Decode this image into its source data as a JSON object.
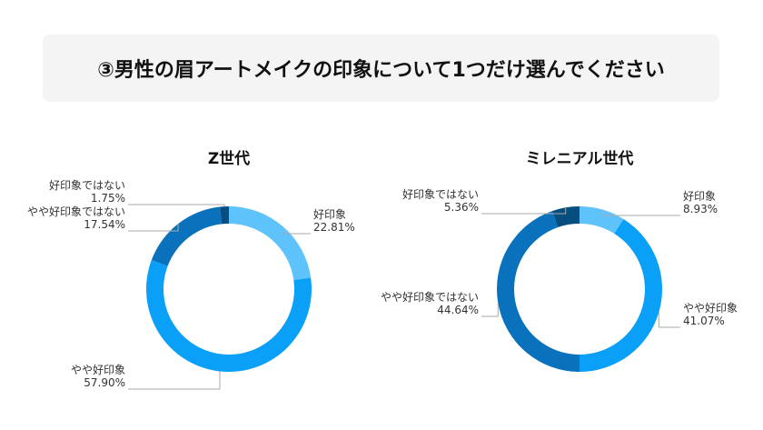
{
  "page_title": "③男性の眉アートメイクの印象について1つだけ選んでください",
  "chart_data": [
    {
      "type": "pie",
      "title": "Z世代",
      "categories": [
        "好印象",
        "やや好印象",
        "やや好印象ではない",
        "好印象ではない"
      ],
      "values": [
        22.81,
        57.9,
        17.54,
        1.75
      ],
      "value_labels": [
        "22.81%",
        "57.90%",
        "17.54%",
        "1.75%"
      ],
      "colors": [
        "#5ec3fb",
        "#0aa0f7",
        "#0a72bd",
        "#074e80"
      ],
      "donut": true
    },
    {
      "type": "pie",
      "title": "ミレニアル世代",
      "categories": [
        "好印象",
        "やや好印象",
        "やや好印象ではない",
        "好印象ではない"
      ],
      "values": [
        8.93,
        41.07,
        44.64,
        5.36
      ],
      "value_labels": [
        "8.93%",
        "41.07%",
        "44.64%",
        "5.36%"
      ],
      "colors": [
        "#5ec3fb",
        "#0aa0f7",
        "#0a72bd",
        "#074e80"
      ],
      "donut": true
    }
  ]
}
